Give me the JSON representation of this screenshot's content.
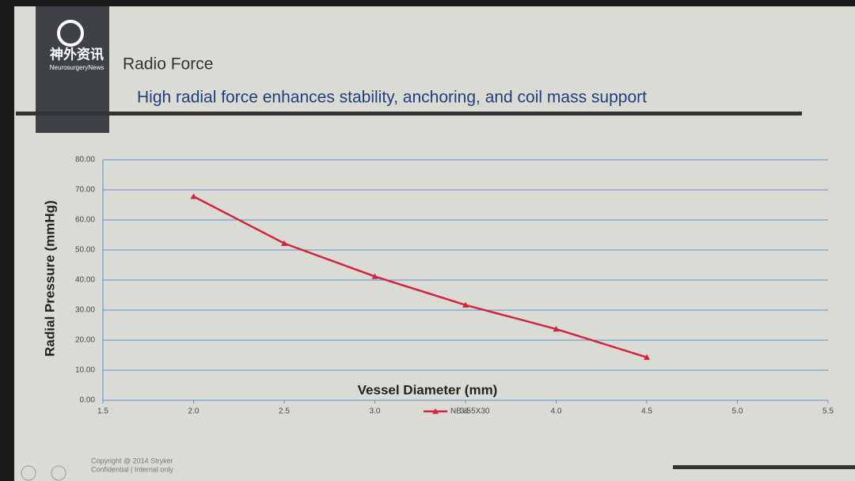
{
  "slide": {
    "logo": "神外资讯",
    "logo_sub": "NeurosurgeryNews",
    "title": "Radio Force",
    "subtitle": "High radial force enhances stability, anchoring, and coil mass support",
    "footer": [
      "Copyright @ 2014 Stryker",
      "Confidential | Internal only"
    ]
  },
  "chart_data": {
    "type": "line",
    "x_label": "Vessel Diameter (mm)",
    "y_label": "Radial Pressure (mmHg)",
    "x": [
      2.0,
      2.5,
      3.0,
      3.5,
      4.0,
      4.5
    ],
    "series": [
      {
        "name": "NB & 5X30",
        "color": "#d2243c",
        "values": [
          67.8,
          52.2,
          41.2,
          31.7,
          23.7,
          14.3
        ]
      }
    ],
    "xlim": [
      1.5,
      5.5
    ],
    "xticks": [
      {
        "value": 1.5,
        "label": "1.5"
      },
      {
        "value": 2,
        "label": "2.0"
      },
      {
        "value": 2.5,
        "label": "2.5"
      },
      {
        "value": 3,
        "label": "3.0"
      },
      {
        "value": 3.5,
        "label": "3.5"
      },
      {
        "value": 4,
        "label": "4.0"
      },
      {
        "value": 4.5,
        "label": "4.5"
      },
      {
        "value": 5,
        "label": "5.0"
      },
      {
        "value": 5.5,
        "label": "5.5"
      }
    ],
    "ylim": [
      0,
      80
    ],
    "yticks": [
      {
        "value": 0,
        "label": "0.00"
      },
      {
        "value": 10,
        "label": "10.00"
      },
      {
        "value": 20,
        "label": "20.00"
      },
      {
        "value": 30,
        "label": "30.00"
      },
      {
        "value": 40,
        "label": "40.00"
      },
      {
        "value": 50,
        "label": "50.00"
      },
      {
        "value": 60,
        "label": "60.00"
      },
      {
        "value": 70,
        "label": "70.00"
      },
      {
        "value": 80,
        "label": "80.00"
      }
    ],
    "grid": true,
    "grid_color": "#5b8fd0",
    "legend": "bottom"
  }
}
